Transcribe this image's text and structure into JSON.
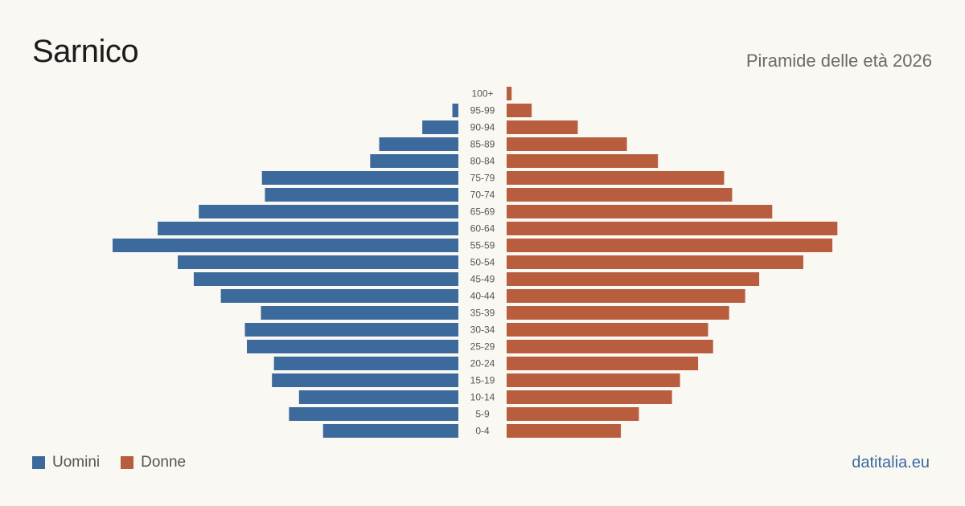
{
  "header": {
    "title": "Sarnico",
    "subtitle": "Piramide delle età 2026"
  },
  "legend": {
    "men_label": "Uomini",
    "women_label": "Donne"
  },
  "footer": {
    "brand": "datitalia.eu"
  },
  "colors": {
    "men": "#3c6a9c",
    "women": "#b85e3e",
    "age_label": "#555555"
  },
  "chart_data": {
    "type": "bar",
    "orientation": "horizontal-pyramid",
    "categories": [
      "100+",
      "95-99",
      "90-94",
      "85-89",
      "80-84",
      "75-79",
      "70-74",
      "65-69",
      "60-64",
      "55-59",
      "50-54",
      "45-49",
      "40-44",
      "35-39",
      "30-34",
      "25-29",
      "20-24",
      "15-19",
      "10-14",
      "5-9",
      "0-4"
    ],
    "series": [
      {
        "name": "Uomini",
        "side": "left",
        "values": [
          0,
          6,
          36,
          79,
          88,
          196,
          193,
          259,
          300,
          345,
          280,
          264,
          237,
          197,
          213,
          211,
          184,
          186,
          159,
          169,
          135
        ]
      },
      {
        "name": "Donne",
        "side": "right",
        "values": [
          5,
          25,
          71,
          120,
          151,
          217,
          225,
          265,
          330,
          325,
          296,
          252,
          238,
          222,
          201,
          206,
          191,
          173,
          165,
          132,
          114
        ]
      }
    ],
    "xlim": [
      0,
      345
    ],
    "grid": false,
    "legend_position": "bottom-left"
  }
}
